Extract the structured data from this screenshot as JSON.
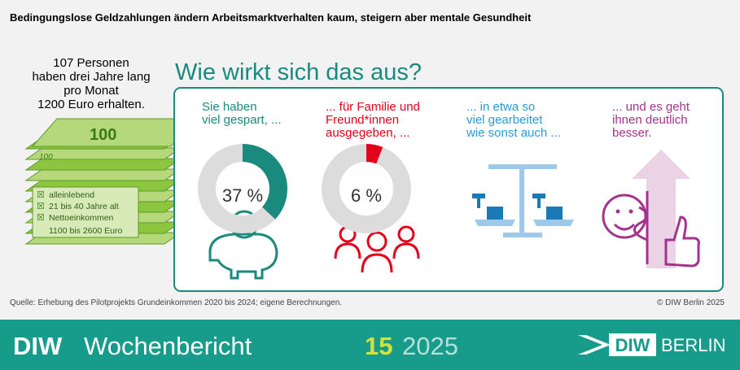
{
  "header": {
    "title": "Bedingungslose Geldzahlungen ändern Arbeitsmarktverhalten kaum, steigern aber mentale Gesundheit"
  },
  "intro": {
    "lines": [
      "107 Personen",
      "haben drei Jahre lang",
      "pro Monat",
      "1200 Euro erhalten."
    ],
    "banknote": "100",
    "checklist": [
      "alleinlebend",
      "21 bis 40 Jahre alt",
      "Nettoeinkommen"
    ],
    "income_range": "1100 bis 2600 Euro"
  },
  "question": "Wie wirkt sich das aus?",
  "panels": [
    {
      "lines": [
        "Sie haben",
        "viel gespart, ..."
      ],
      "value": 37,
      "value_label": "37 %",
      "color": "#1b8a7e"
    },
    {
      "lines": [
        "... für Familie und",
        "Freund*innen",
        "ausgegeben, ..."
      ],
      "value": 6,
      "value_label": "6 %",
      "color": "#e2001a"
    },
    {
      "lines": [
        "... in etwa so",
        "viel gearbeitet",
        "wie sonst auch ..."
      ],
      "color": "#2a9bd5"
    },
    {
      "lines": [
        "... und es geht",
        "ihnen deutlich",
        "besser."
      ],
      "color": "#a4338d"
    }
  ],
  "source": "Quelle: Erhebung des Pilotprojekts Grundeinkommen 2020 bis 2024; eigene Berechnungen.",
  "copyright": "© DIW Berlin 2025",
  "footer": {
    "brand": "DIW",
    "publication": "Wochenbericht",
    "issue": "15",
    "year": "2025",
    "logo_a": "DIW",
    "logo_b": "BERLIN"
  }
}
